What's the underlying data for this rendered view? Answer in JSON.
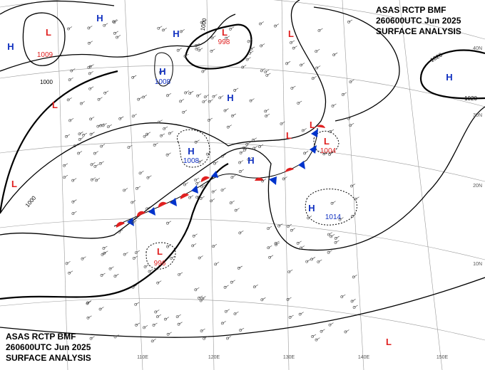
{
  "header": {
    "lines": [
      "ASAS RCTP BMF",
      "260600UTC Jun 2025",
      "SURFACE ANALYSIS"
    ]
  },
  "footer": {
    "lines": [
      "ASAS RCTP BMF",
      "260600UTC Jun 2025",
      "SURFACE ANALYSIS"
    ]
  },
  "centers": [
    {
      "symbol": "H"
    },
    {
      "symbol": "L",
      "value": "1009"
    },
    {
      "symbol": "H"
    },
    {
      "symbol": "H"
    },
    {
      "symbol": "L",
      "value": "998"
    },
    {
      "symbol": "L"
    },
    {
      "symbol": "H",
      "value": "1008"
    },
    {
      "symbol": "H"
    },
    {
      "symbol": "L"
    },
    {
      "symbol": "H",
      "value": "1008"
    },
    {
      "symbol": "H"
    },
    {
      "symbol": "L"
    },
    {
      "symbol": "L"
    },
    {
      "symbol": "L",
      "value": "1004"
    },
    {
      "symbol": "L"
    },
    {
      "symbol": "H",
      "value": "1014"
    },
    {
      "symbol": "L",
      "value": "996"
    },
    {
      "symbol": "H"
    },
    {
      "symbol": "L"
    }
  ],
  "isobar_labels": [
    "1000",
    "1000",
    "1000",
    "1020",
    "1020"
  ],
  "latitude_labels": [
    "40N",
    "30N",
    "20N",
    "10N"
  ],
  "longitude_labels": [
    "110E",
    "120E",
    "130E",
    "140E",
    "150E"
  ]
}
